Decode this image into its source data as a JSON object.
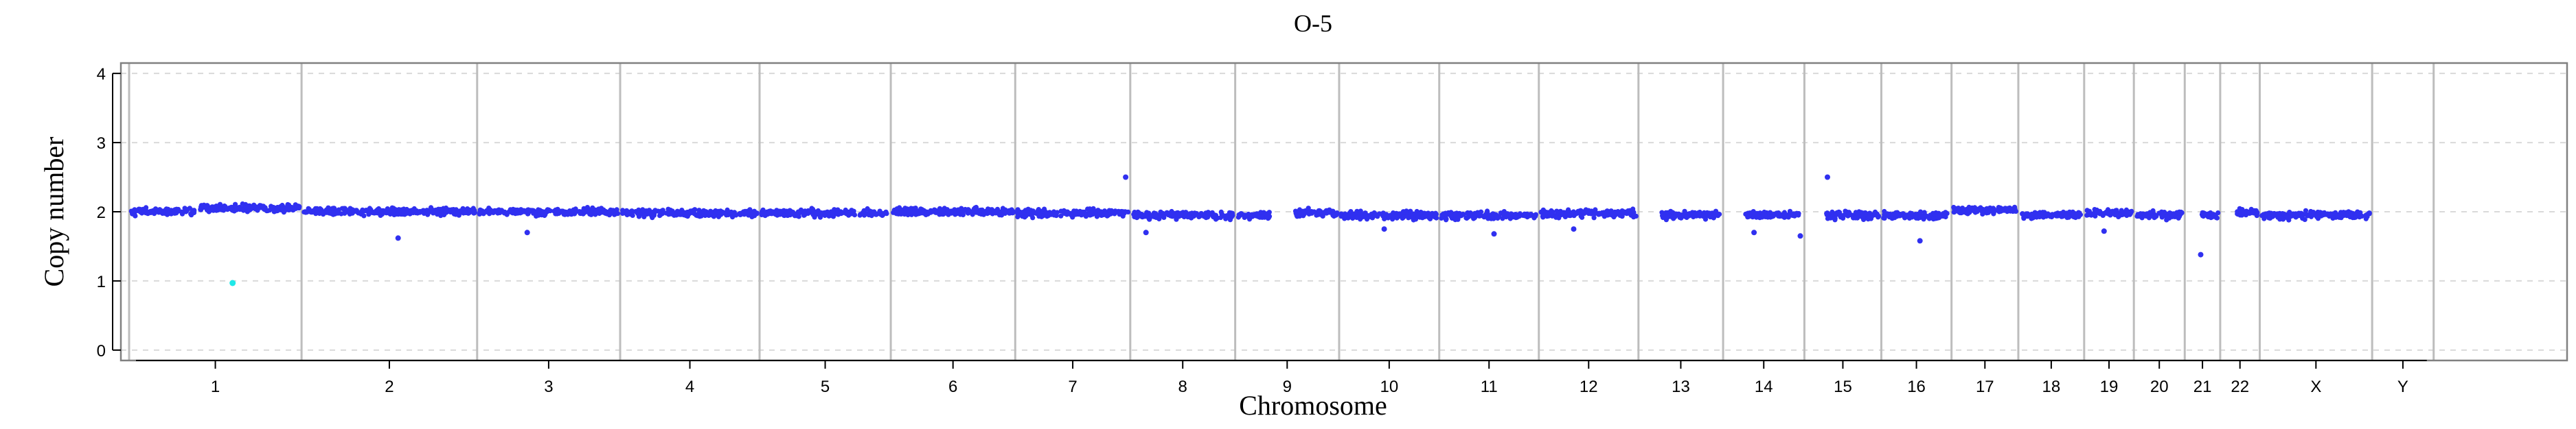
{
  "chart_data": {
    "type": "scatter",
    "title": "O-5",
    "xlabel": "Chromosome",
    "ylabel": "Copy number",
    "ylim": [
      -0.15,
      4.15
    ],
    "yticks": [
      0,
      1,
      2,
      3,
      4
    ],
    "grid": true,
    "legend": "none",
    "colors": {
      "point": "#3030f0",
      "highlight": "#20e8e8",
      "separator": "#bdbdbd"
    },
    "chromosomes": [
      {
        "label": "1",
        "span": [
          0.0,
          0.0715
        ],
        "segments": [
          {
            "from": 0.0,
            "to": 0.4,
            "level": 2.0
          },
          {
            "from": 0.4,
            "to": 1.0,
            "level": 2.05
          }
        ]
      },
      {
        "label": "2",
        "span": [
          0.0715,
          0.1443
        ],
        "segments": [
          {
            "from": 0.0,
            "to": 1.0,
            "level": 2.0
          }
        ]
      },
      {
        "label": "3",
        "span": [
          0.1443,
          0.2036
        ],
        "segments": [
          {
            "from": 0.0,
            "to": 1.0,
            "level": 2.0
          }
        ]
      },
      {
        "label": "4",
        "span": [
          0.2036,
          0.2614
        ],
        "segments": [
          {
            "from": 0.0,
            "to": 1.0,
            "level": 1.98
          }
        ]
      },
      {
        "label": "5",
        "span": [
          0.2614,
          0.3158
        ],
        "segments": [
          {
            "from": 0.0,
            "to": 1.0,
            "level": 1.98
          }
        ]
      },
      {
        "label": "6",
        "span": [
          0.3158,
          0.3674
        ],
        "segments": [
          {
            "from": 0.0,
            "to": 1.0,
            "level": 2.0
          }
        ]
      },
      {
        "label": "7",
        "span": [
          0.3674,
          0.4151
        ],
        "segments": [
          {
            "from": 0.0,
            "to": 1.0,
            "level": 1.98
          }
        ]
      },
      {
        "label": "8",
        "span": [
          0.4151,
          0.4586
        ],
        "segments": [
          {
            "from": 0.0,
            "to": 1.0,
            "level": 1.95
          }
        ]
      },
      {
        "label": "9",
        "span": [
          0.4586,
          0.5017
        ],
        "segments": [
          {
            "from": 0.0,
            "to": 0.35,
            "level": 1.95
          },
          {
            "from": 0.55,
            "to": 1.0,
            "level": 1.98
          }
        ]
      },
      {
        "label": "10",
        "span": [
          0.5017,
          0.5432
        ],
        "segments": [
          {
            "from": 0.0,
            "to": 1.0,
            "level": 1.95
          }
        ]
      },
      {
        "label": "11",
        "span": [
          0.5432,
          0.5845
        ],
        "segments": [
          {
            "from": 0.0,
            "to": 1.0,
            "level": 1.95
          }
        ]
      },
      {
        "label": "12",
        "span": [
          0.5845,
          0.6258
        ],
        "segments": [
          {
            "from": 0.0,
            "to": 1.0,
            "level": 1.98
          }
        ]
      },
      {
        "label": "13",
        "span": [
          0.6258,
          0.6609
        ],
        "segments": [
          {
            "from": 0.25,
            "to": 1.0,
            "level": 1.95
          }
        ]
      },
      {
        "label": "14",
        "span": [
          0.6609,
          0.6946
        ],
        "segments": [
          {
            "from": 0.25,
            "to": 1.0,
            "level": 1.95
          }
        ]
      },
      {
        "label": "15",
        "span": [
          0.6946,
          0.7265
        ],
        "segments": [
          {
            "from": 0.25,
            "to": 1.0,
            "level": 1.95
          }
        ]
      },
      {
        "label": "16",
        "span": [
          0.7265,
          0.7556
        ],
        "segments": [
          {
            "from": 0.0,
            "to": 1.0,
            "level": 1.95
          }
        ]
      },
      {
        "label": "17",
        "span": [
          0.7556,
          0.7833
        ],
        "segments": [
          {
            "from": 0.0,
            "to": 1.0,
            "level": 2.02
          }
        ]
      },
      {
        "label": "18",
        "span": [
          0.7833,
          0.8106
        ],
        "segments": [
          {
            "from": 0.0,
            "to": 1.0,
            "level": 1.95
          }
        ]
      },
      {
        "label": "19",
        "span": [
          0.8106,
          0.8312
        ],
        "segments": [
          {
            "from": 0.0,
            "to": 1.0,
            "level": 1.98
          }
        ]
      },
      {
        "label": "20",
        "span": [
          0.8312,
          0.8523
        ],
        "segments": [
          {
            "from": 0.0,
            "to": 1.0,
            "level": 1.95
          }
        ]
      },
      {
        "label": "21",
        "span": [
          0.8523,
          0.867
        ],
        "segments": [
          {
            "from": 0.35,
            "to": 1.0,
            "level": 1.95
          }
        ]
      },
      {
        "label": "22",
        "span": [
          0.867,
          0.8834
        ],
        "segments": [
          {
            "from": 0.35,
            "to": 1.0,
            "level": 2.0
          }
        ]
      },
      {
        "label": "X",
        "span": [
          0.8834,
          0.93
        ],
        "segments": [
          {
            "from": 0.0,
            "to": 1.0,
            "level": 1.95
          }
        ]
      },
      {
        "label": "Y",
        "span": [
          0.93,
          0.9555
        ],
        "segments": []
      }
    ],
    "outliers": [
      {
        "chromosome": "1",
        "pos": 0.6,
        "y": 0.97,
        "highlight": true
      },
      {
        "chromosome": "2",
        "pos": 0.55,
        "y": 1.62,
        "highlight": false
      },
      {
        "chromosome": "3",
        "pos": 0.35,
        "y": 1.7,
        "highlight": false
      },
      {
        "chromosome": "7",
        "pos": 0.96,
        "y": 2.5,
        "highlight": false
      },
      {
        "chromosome": "8",
        "pos": 0.15,
        "y": 1.7,
        "highlight": false
      },
      {
        "chromosome": "10",
        "pos": 0.45,
        "y": 1.75,
        "highlight": false
      },
      {
        "chromosome": "11",
        "pos": 0.55,
        "y": 1.68,
        "highlight": false
      },
      {
        "chromosome": "12",
        "pos": 0.35,
        "y": 1.75,
        "highlight": false
      },
      {
        "chromosome": "14",
        "pos": 0.38,
        "y": 1.7,
        "highlight": false
      },
      {
        "chromosome": "14",
        "pos": 0.95,
        "y": 1.65,
        "highlight": false
      },
      {
        "chromosome": "15",
        "pos": 0.3,
        "y": 2.5,
        "highlight": false
      },
      {
        "chromosome": "16",
        "pos": 0.55,
        "y": 1.58,
        "highlight": false
      },
      {
        "chromosome": "19",
        "pos": 0.4,
        "y": 1.72,
        "highlight": false
      },
      {
        "chromosome": "21",
        "pos": 0.45,
        "y": 1.38,
        "highlight": false
      }
    ]
  }
}
